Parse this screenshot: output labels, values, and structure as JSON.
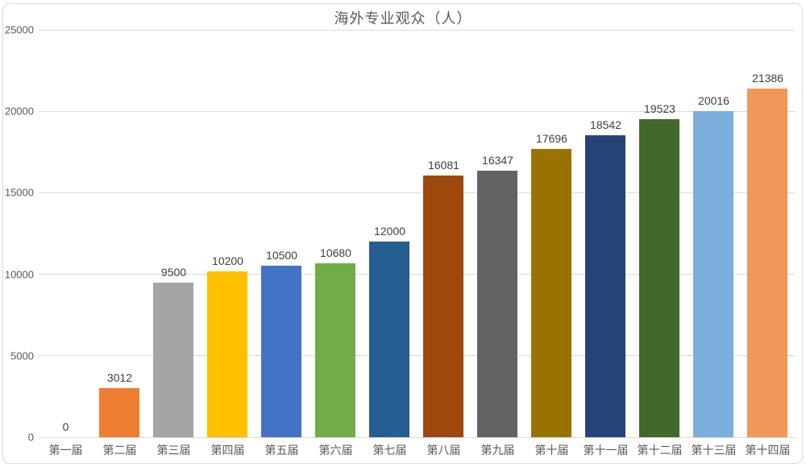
{
  "chart": {
    "title": "海外专业观众（人）"
  },
  "chart_data": {
    "type": "bar",
    "title": "海外专业观众（人）",
    "categories": [
      "第一届",
      "第二届",
      "第三届",
      "第四届",
      "第五届",
      "第六届",
      "第七届",
      "第八届",
      "第九届",
      "第十届",
      "第十一届",
      "第十二届",
      "第十三届",
      "第十四届"
    ],
    "values": [
      0,
      3012,
      9500,
      10200,
      10500,
      10680,
      12000,
      16081,
      16347,
      17696,
      18542,
      19523,
      20016,
      21386
    ],
    "bar_colors": [
      "#5B9BD5",
      "#ED7D31",
      "#A5A5A5",
      "#FFC000",
      "#4472C4",
      "#70AD47",
      "#255E91",
      "#9E480E",
      "#636363",
      "#997300",
      "#264478",
      "#43682B",
      "#7CAFDD",
      "#F1975A"
    ],
    "xlabel": "",
    "ylabel": "",
    "ylim": [
      0,
      25000
    ],
    "ytick_interval": 5000,
    "yticks": [
      0,
      5000,
      10000,
      15000,
      20000,
      25000
    ],
    "grid": true,
    "legend": "none",
    "data_labels": true
  },
  "style": {
    "background": "#FFFFFF",
    "frame_border_color": "#D9D9D9",
    "grid_color": "#D9D9D9",
    "axis_line_color": "#D9D9D9",
    "title_color": "#595959",
    "tick_label_color": "#595959",
    "data_label_color": "#404040"
  }
}
